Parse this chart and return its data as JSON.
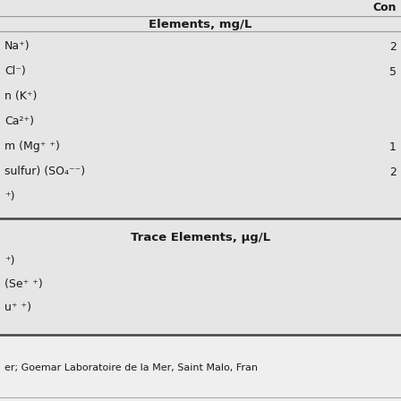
{
  "title_top_right": "Con",
  "section1_header": "Elements, mg/L",
  "section2_header": "Trace Elements, μg/L",
  "rows_section1": [
    {
      "label": "Na⁺)",
      "value": "2"
    },
    {
      "label": "Cl⁻)",
      "value": "5"
    },
    {
      "label": "n (K⁺)",
      "value": ""
    },
    {
      "label": "Ca²⁺)",
      "value": ""
    },
    {
      "label": "m (Mg⁺ ⁺)",
      "value": "1"
    },
    {
      "label": "sulfur) (SO₄⁻⁻)",
      "value": "2"
    },
    {
      "label": "⁺)",
      "value": ""
    }
  ],
  "rows_section2": [
    {
      "label": "⁺)",
      "value": ""
    },
    {
      "label": "(Se⁺ ⁺)",
      "value": ""
    },
    {
      "label": "u⁺ ⁺)",
      "value": ""
    }
  ],
  "footer": "er; Goemar Laboratoire de la Mer, Saint Malo, Fran",
  "bg_color": "#e6e6e6",
  "footer_bg": "#efefef",
  "text_color": "#1a1a1a",
  "line_color_thin": "#999999",
  "line_color_thick": "#444444"
}
